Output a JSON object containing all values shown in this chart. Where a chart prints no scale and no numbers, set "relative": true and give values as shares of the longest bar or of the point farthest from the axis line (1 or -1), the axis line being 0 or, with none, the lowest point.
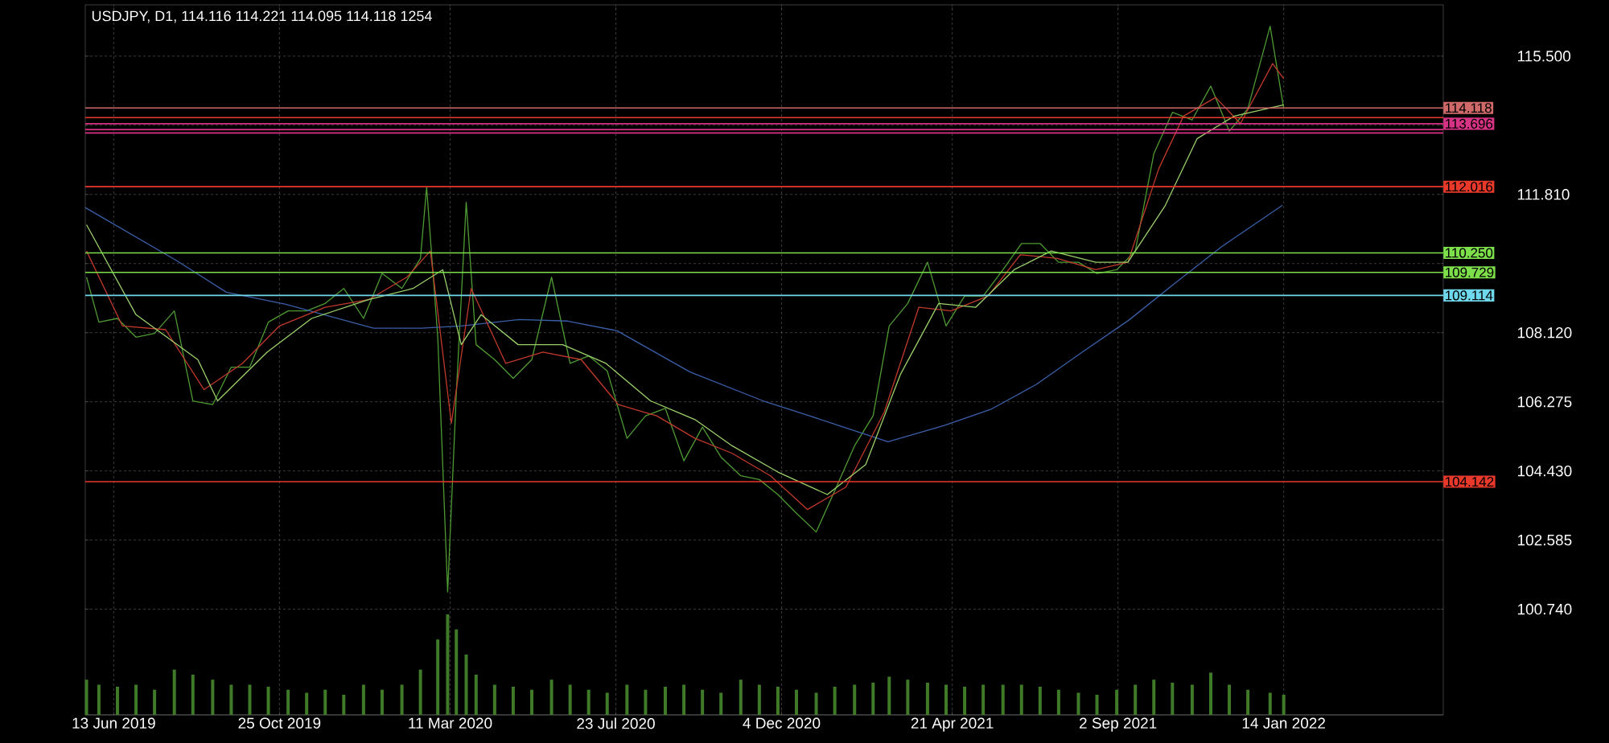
{
  "chart_data": [
    {
      "type": "line",
      "title": "USDJPY, D1, 114.116 114.221 114.095 114.118 1254",
      "xlim": [
        "2019-05-21",
        "2022-05-23"
      ],
      "xticks": [
        {
          "value": "2019-06-13",
          "label": "13 Jun 2019"
        },
        {
          "value": "2019-10-25",
          "label": "25 Oct 2019"
        },
        {
          "value": "2020-03-11",
          "label": "11 Mar 2020"
        },
        {
          "value": "2020-07-23",
          "label": "23 Jul 2020"
        },
        {
          "value": "2020-12-04",
          "label": "4 Dec 2020"
        },
        {
          "value": "2021-04-21",
          "label": "21 Apr 2021"
        },
        {
          "value": "2021-09-02",
          "label": "2 Sep 2021"
        },
        {
          "value": "2022-01-14",
          "label": "14 Jan 2022"
        }
      ],
      "ylim": [
        97.92,
        116.87
      ],
      "yticks": [
        {
          "value": 100.74,
          "label": "100.740"
        },
        {
          "value": 102.585,
          "label": "102.585"
        },
        {
          "value": 104.43,
          "label": "104.430"
        },
        {
          "value": 106.275,
          "label": "106.275"
        },
        {
          "value": 108.12,
          "label": "108.120"
        },
        {
          "value": 109.965,
          "label": null
        },
        {
          "value": 111.81,
          "label": "111.810"
        },
        {
          "value": 113.655,
          "label": null
        },
        {
          "value": 115.5,
          "label": "115.500"
        }
      ],
      "grid": true,
      "series": [
        {
          "color": "#4e9a32",
          "x": [
            "2019-05-22",
            "2019-06-01",
            "2019-06-16",
            "2019-07-01",
            "2019-07-16",
            "2019-08-01",
            "2019-08-16",
            "2019-09-01",
            "2019-09-16",
            "2019-10-01",
            "2019-10-16",
            "2019-11-01",
            "2019-11-16",
            "2019-12-01",
            "2019-12-16",
            "2020-01-01",
            "2020-01-16",
            "2020-02-01",
            "2020-02-16",
            "2020-02-21",
            "2020-03-01",
            "2020-03-09",
            "2020-03-16",
            "2020-03-24",
            "2020-04-01",
            "2020-04-16",
            "2020-05-01",
            "2020-05-16",
            "2020-06-01",
            "2020-06-16",
            "2020-07-01",
            "2020-07-16",
            "2020-08-01",
            "2020-08-16",
            "2020-09-01",
            "2020-09-16",
            "2020-10-01",
            "2020-10-16",
            "2020-11-01",
            "2020-11-16",
            "2020-12-01",
            "2020-12-16",
            "2021-01-01",
            "2021-01-16",
            "2021-02-01",
            "2021-02-16",
            "2021-03-01",
            "2021-03-16",
            "2021-04-01",
            "2021-04-16",
            "2021-05-01",
            "2021-05-16",
            "2021-06-01",
            "2021-06-16",
            "2021-07-01",
            "2021-07-16",
            "2021-08-01",
            "2021-08-16",
            "2021-09-01",
            "2021-09-16",
            "2021-10-01",
            "2021-10-16",
            "2021-11-01",
            "2021-11-16",
            "2021-12-01",
            "2021-12-16",
            "2022-01-03",
            "2022-01-14"
          ],
          "values": [
            109.6,
            108.4,
            108.5,
            108.0,
            108.1,
            108.7,
            106.3,
            106.2,
            107.2,
            107.2,
            108.4,
            108.7,
            108.7,
            108.9,
            109.3,
            108.5,
            109.7,
            109.3,
            110.1,
            112.0,
            108.0,
            101.2,
            106.5,
            111.6,
            107.8,
            107.4,
            106.9,
            107.4,
            109.6,
            107.3,
            107.5,
            107.1,
            105.3,
            105.9,
            106.1,
            104.7,
            105.6,
            104.8,
            104.3,
            104.2,
            103.8,
            103.3,
            102.8,
            103.9,
            105.1,
            105.9,
            108.3,
            108.9,
            110.0,
            108.3,
            109.1,
            109.1,
            109.8,
            110.5,
            110.5,
            110.0,
            110.0,
            109.7,
            109.8,
            110.3,
            112.9,
            114.0,
            113.8,
            114.7,
            113.5,
            114.1,
            116.3,
            114.1
          ]
        },
        {
          "color": "#3a5fa8",
          "x": [
            "2019-05-21",
            "2019-08-03",
            "2019-09-12",
            "2019-10-30",
            "2020-01-09",
            "2020-02-17",
            "2020-03-20",
            "2020-05-06",
            "2020-06-14",
            "2020-07-24",
            "2020-09-21",
            "2020-11-19",
            "2020-12-23",
            "2021-01-25",
            "2021-02-28",
            "2021-04-14",
            "2021-05-22",
            "2021-06-28",
            "2021-08-04",
            "2021-09-11",
            "2021-10-18",
            "2021-11-25",
            "2022-01-13"
          ],
          "values": [
            111.46,
            110.04,
            109.2,
            108.88,
            108.24,
            108.24,
            108.3,
            108.47,
            108.43,
            108.17,
            107.07,
            106.3,
            105.94,
            105.58,
            105.21,
            105.64,
            106.07,
            106.74,
            107.6,
            108.46,
            109.44,
            110.42,
            111.52
          ]
        },
        {
          "color": "#c0392b",
          "x": [
            "2019-05-22",
            "2019-06-20",
            "2019-07-25",
            "2019-08-25",
            "2019-09-25",
            "2019-10-25",
            "2019-12-01",
            "2020-01-05",
            "2020-02-05",
            "2020-02-24",
            "2020-03-12",
            "2020-03-28",
            "2020-04-25",
            "2020-05-25",
            "2020-06-25",
            "2020-07-25",
            "2020-08-25",
            "2020-09-25",
            "2020-10-25",
            "2020-11-25",
            "2020-12-25",
            "2021-01-25",
            "2021-02-25",
            "2021-03-25",
            "2021-04-20",
            "2021-05-20",
            "2021-06-15",
            "2021-07-15",
            "2021-08-15",
            "2021-09-10",
            "2021-10-05",
            "2021-10-25",
            "2021-11-20",
            "2021-12-10",
            "2022-01-05",
            "2022-01-14"
          ],
          "values": [
            110.3,
            108.3,
            108.2,
            106.6,
            107.3,
            108.3,
            108.8,
            109.0,
            109.6,
            110.3,
            105.7,
            109.3,
            107.3,
            107.6,
            107.4,
            106.2,
            105.9,
            105.3,
            104.9,
            104.3,
            103.4,
            104.0,
            106.0,
            108.8,
            108.7,
            109.1,
            110.2,
            110.1,
            109.8,
            110.0,
            112.5,
            113.9,
            114.4,
            113.7,
            115.3,
            114.9
          ]
        },
        {
          "color": "#9ad06a",
          "x": [
            "2019-05-22",
            "2019-07-01",
            "2019-08-20",
            "2019-09-05",
            "2019-10-15",
            "2019-11-20",
            "2020-01-05",
            "2020-02-10",
            "2020-03-05",
            "2020-03-20",
            "2020-04-05",
            "2020-05-05",
            "2020-06-10",
            "2020-07-15",
            "2020-08-20",
            "2020-09-25",
            "2020-10-25",
            "2020-12-01",
            "2021-01-10",
            "2021-02-10",
            "2021-03-10",
            "2021-04-10",
            "2021-05-10",
            "2021-06-10",
            "2021-07-10",
            "2021-08-15",
            "2021-09-10",
            "2021-10-10",
            "2021-11-05",
            "2021-12-05",
            "2022-01-14"
          ],
          "values": [
            111.0,
            108.6,
            107.4,
            106.3,
            107.6,
            108.5,
            109.0,
            109.3,
            109.8,
            107.8,
            108.6,
            107.8,
            107.8,
            107.3,
            106.3,
            105.8,
            105.1,
            104.4,
            103.8,
            104.6,
            107.0,
            108.9,
            108.8,
            109.8,
            110.3,
            110.0,
            110.0,
            111.5,
            113.3,
            113.9,
            114.2
          ]
        }
      ],
      "ref_lines": [
        {
          "axis": "y",
          "value": 114.118,
          "label": "114.118",
          "color": "#d06a6a"
        },
        {
          "axis": "y",
          "value": 113.86,
          "label": null,
          "color": "#e8392b"
        },
        {
          "axis": "y",
          "value": 113.696,
          "label": "113.696",
          "color": "#d63384"
        },
        {
          "axis": "y",
          "value": 113.54,
          "label": null,
          "color": "#d63384"
        },
        {
          "axis": "y",
          "value": 113.45,
          "label": null,
          "color": "#d63384"
        },
        {
          "axis": "y",
          "value": 112.016,
          "label": "112.016",
          "color": "#e8392b"
        },
        {
          "axis": "y",
          "value": 110.25,
          "label": "110.250",
          "color": "#7de04a"
        },
        {
          "axis": "y",
          "value": 109.729,
          "label": "109.729",
          "color": "#7de04a"
        },
        {
          "axis": "y",
          "value": 109.114,
          "label": "109.114",
          "color": "#6fd8ec"
        },
        {
          "axis": "y",
          "value": 104.142,
          "label": "104.142",
          "color": "#e8392b"
        }
      ]
    },
    {
      "type": "bar",
      "relative": true,
      "xlim": [
        "2019-05-21",
        "2022-05-23"
      ],
      "color": "#3f7a28",
      "x": [
        "2019-05-22",
        "2019-06-01",
        "2019-06-16",
        "2019-07-01",
        "2019-07-16",
        "2019-08-01",
        "2019-08-16",
        "2019-09-01",
        "2019-09-16",
        "2019-10-01",
        "2019-10-16",
        "2019-11-01",
        "2019-11-16",
        "2019-12-01",
        "2019-12-16",
        "2020-01-01",
        "2020-01-16",
        "2020-02-01",
        "2020-02-16",
        "2020-03-01",
        "2020-03-09",
        "2020-03-16",
        "2020-03-24",
        "2020-04-01",
        "2020-04-16",
        "2020-05-01",
        "2020-05-16",
        "2020-06-01",
        "2020-06-16",
        "2020-07-01",
        "2020-07-16",
        "2020-08-01",
        "2020-08-16",
        "2020-09-01",
        "2020-09-16",
        "2020-10-01",
        "2020-10-16",
        "2020-11-01",
        "2020-11-16",
        "2020-12-01",
        "2020-12-16",
        "2021-01-01",
        "2021-01-16",
        "2021-02-01",
        "2021-02-16",
        "2021-03-01",
        "2021-03-16",
        "2021-04-01",
        "2021-04-16",
        "2021-05-01",
        "2021-05-16",
        "2021-06-01",
        "2021-06-16",
        "2021-07-01",
        "2021-07-16",
        "2021-08-01",
        "2021-08-16",
        "2021-09-01",
        "2021-09-16",
        "2021-10-01",
        "2021-10-16",
        "2021-11-01",
        "2021-11-16",
        "2021-12-01",
        "2021-12-16",
        "2022-01-03",
        "2022-01-14"
      ],
      "values": [
        0.35,
        0.3,
        0.28,
        0.3,
        0.25,
        0.45,
        0.4,
        0.35,
        0.3,
        0.3,
        0.28,
        0.25,
        0.22,
        0.25,
        0.2,
        0.3,
        0.25,
        0.3,
        0.45,
        0.75,
        1.0,
        0.85,
        0.6,
        0.4,
        0.3,
        0.28,
        0.25,
        0.35,
        0.3,
        0.25,
        0.22,
        0.3,
        0.25,
        0.28,
        0.3,
        0.25,
        0.22,
        0.35,
        0.3,
        0.28,
        0.25,
        0.22,
        0.28,
        0.3,
        0.32,
        0.38,
        0.35,
        0.32,
        0.3,
        0.28,
        0.3,
        0.3,
        0.3,
        0.28,
        0.25,
        0.22,
        0.2,
        0.25,
        0.3,
        0.35,
        0.32,
        0.3,
        0.42,
        0.3,
        0.25,
        0.22,
        0.2
      ]
    }
  ]
}
